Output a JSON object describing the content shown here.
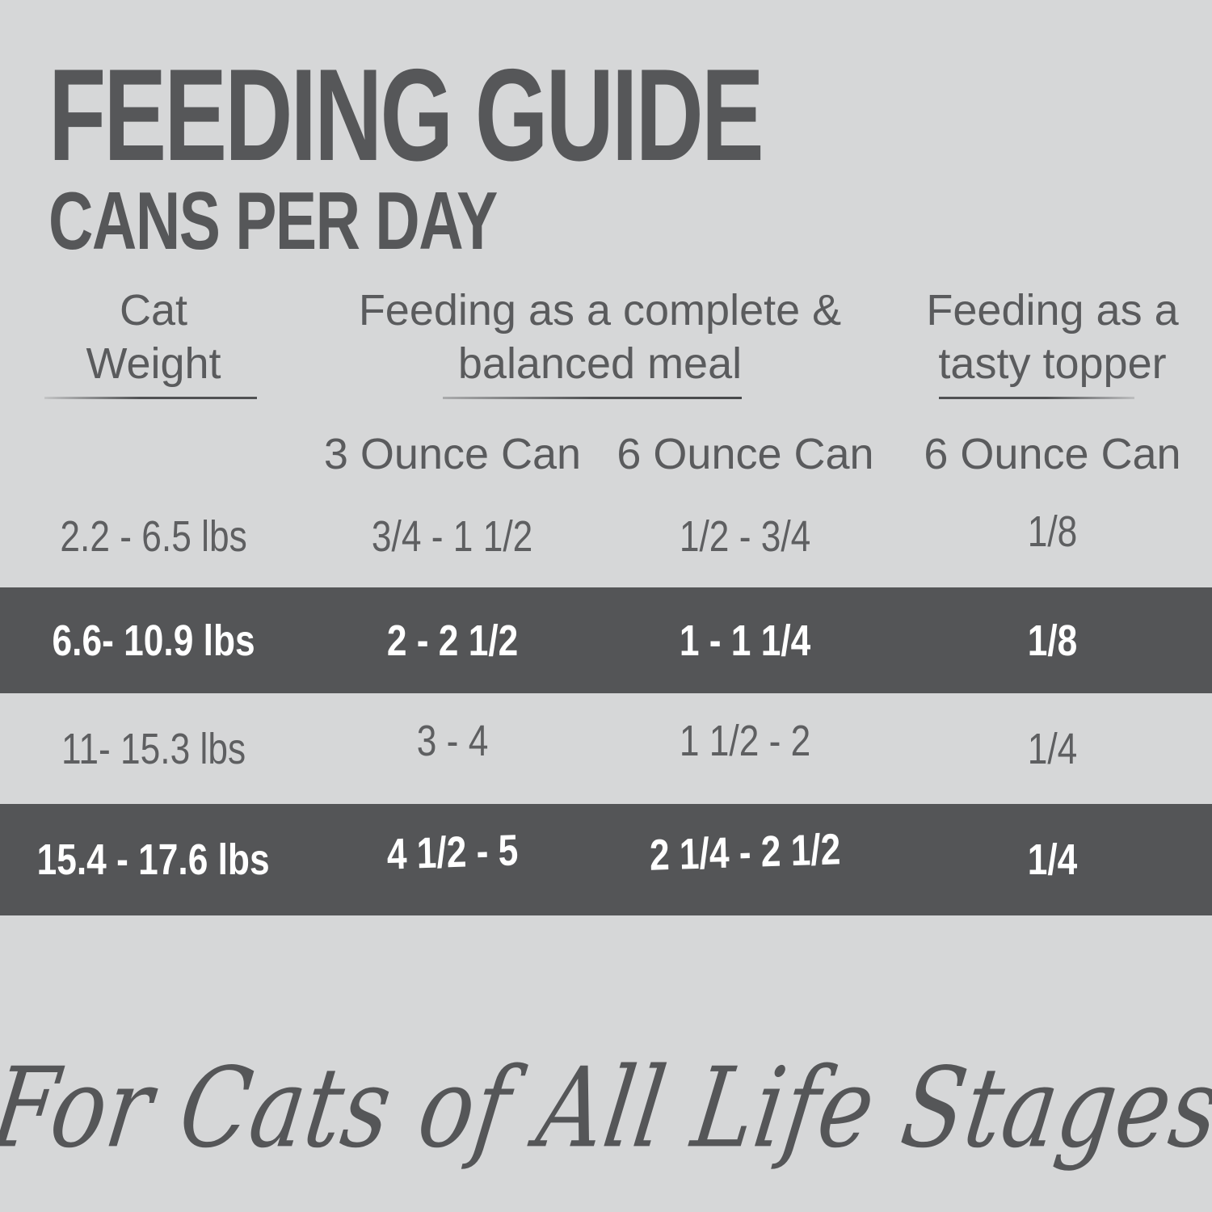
{
  "page": {
    "title": "FEEDING GUIDE",
    "subtitle": "CANS PER DAY",
    "footer_script": "For Cats of All Life Stages"
  },
  "colors": {
    "background": "#d6d7d8",
    "highlight_band": "#545557",
    "text_dark": "#565759",
    "text_on_band": "#ffffff"
  },
  "table": {
    "column_groups": [
      {
        "line1": "Cat",
        "line2": "Weight"
      },
      {
        "line1": "Feeding as a complete &",
        "line2": "balanced meal"
      },
      {
        "line1": "Feeding as a",
        "line2": "tasty topper"
      }
    ],
    "sub_headers": [
      "3 Ounce Can",
      "6 Ounce Can",
      "6 Ounce Can"
    ],
    "rows": [
      {
        "weight": "2.2 - 6.5 lbs",
        "complete_3oz": "3/4 - 1 1/2",
        "complete_6oz": "1/2 - 3/4",
        "topper_6oz": "1/8",
        "highlight": false
      },
      {
        "weight": "6.6- 10.9 lbs",
        "complete_3oz": "2 - 2 1/2",
        "complete_6oz": "1 - 1 1/4",
        "topper_6oz": "1/8",
        "highlight": true
      },
      {
        "weight": "11- 15.3 lbs",
        "complete_3oz": "3 - 4",
        "complete_6oz": "1 1/2 - 2",
        "topper_6oz": "1/4",
        "highlight": false
      },
      {
        "weight": "15.4 - 17.6 lbs",
        "complete_3oz": "4 1/2 - 5",
        "complete_6oz": "2 1/4 - 2 1/2",
        "topper_6oz": "1/4",
        "highlight": true
      }
    ]
  },
  "chart_data": {
    "type": "table",
    "title": "FEEDING GUIDE — CANS PER DAY",
    "columns": [
      "Cat Weight",
      "Feeding as a complete & balanced meal — 3 Ounce Can",
      "Feeding as a complete & balanced meal — 6 Ounce Can",
      "Feeding as a tasty topper — 6 Ounce Can"
    ],
    "rows": [
      [
        "2.2 - 6.5 lbs",
        "3/4 - 1 1/2",
        "1/2 - 3/4",
        "1/8"
      ],
      [
        "6.6- 10.9 lbs",
        "2 - 2 1/2",
        "1 - 1 1/4",
        "1/8"
      ],
      [
        "11- 15.3 lbs",
        "3 - 4",
        "1 1/2 - 2",
        "1/4"
      ],
      [
        "15.4 - 17.6 lbs",
        "4 1/2 - 5",
        "2 1/4 - 2 1/2",
        "1/4"
      ]
    ],
    "annotations": [
      "For Cats of All Life Stages"
    ],
    "layout_hints": {
      "highlighted_rows": [
        1,
        3
      ],
      "grid": false
    }
  }
}
